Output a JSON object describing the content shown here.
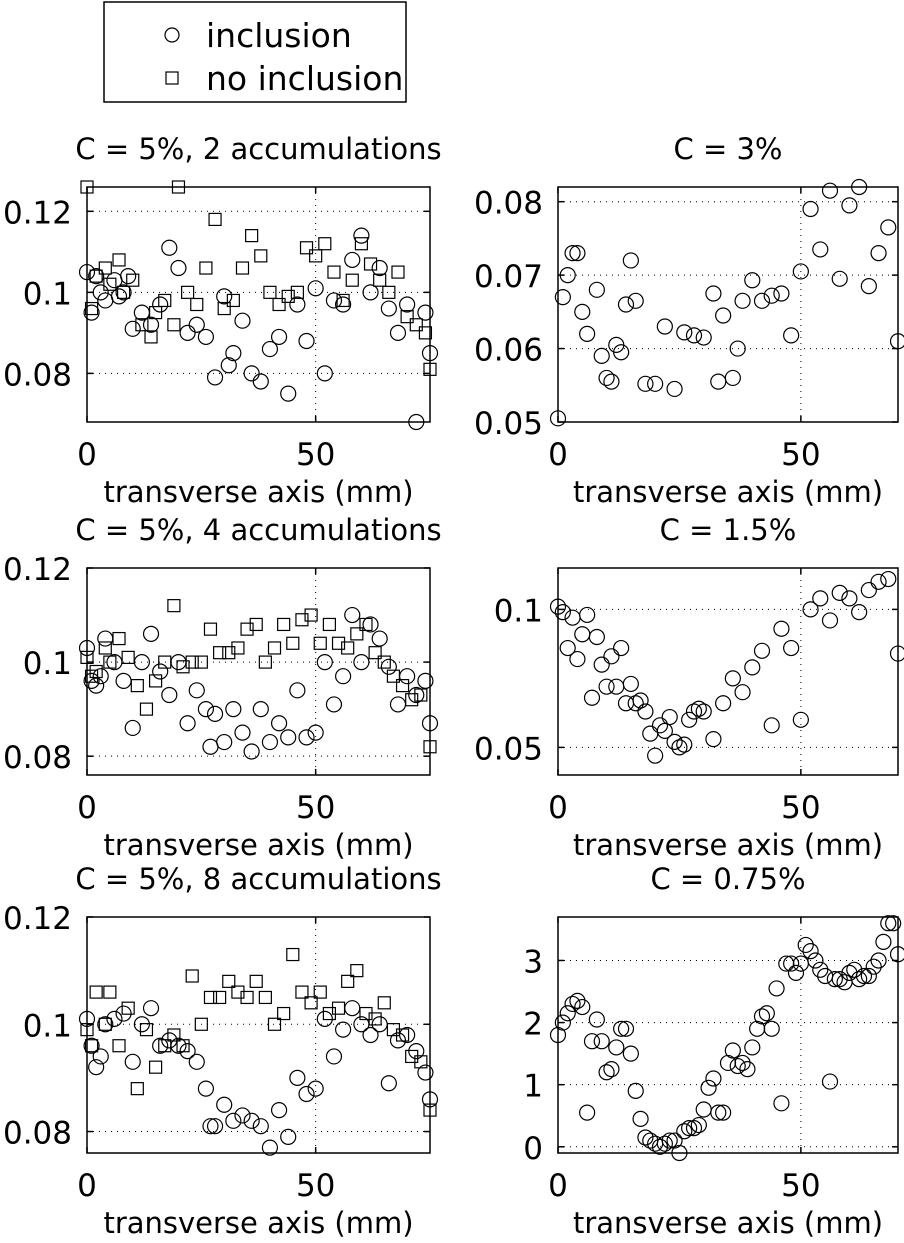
{
  "legend": {
    "entries": [
      {
        "label": "inclusion",
        "marker": "circle"
      },
      {
        "label": "no inclusion",
        "marker": "square"
      }
    ]
  },
  "chart_data": [
    {
      "type": "scatter",
      "title": "C = 5%, 2 accumulations",
      "xlabel": "transverse axis (mm)",
      "ylabel": "",
      "xlim": [
        0,
        75
      ],
      "ylim": [
        0.068,
        0.126
      ],
      "xticks": [
        0,
        50
      ],
      "yticks": [
        0.08,
        0.1,
        0.12
      ],
      "ytick_labels": [
        "0.08",
        "0.1",
        "0.12"
      ],
      "vgrid": [
        50
      ],
      "hgrid": [
        0.08,
        0.1,
        0.12
      ],
      "series": [
        {
          "name": "inclusion",
          "marker": "circle",
          "x": [
            0,
            1,
            2,
            3,
            4,
            6,
            7,
            8,
            9,
            10,
            12,
            14,
            16,
            18,
            20,
            22,
            24,
            26,
            28,
            30,
            31,
            32,
            34,
            36,
            38,
            40,
            42,
            44,
            46,
            48,
            50,
            52,
            54,
            56,
            58,
            60,
            62,
            64,
            66,
            68,
            70,
            72,
            74,
            75
          ],
          "y": [
            0.105,
            0.095,
            0.104,
            0.1,
            0.098,
            0.103,
            0.099,
            0.1,
            0.104,
            0.091,
            0.095,
            0.092,
            0.097,
            0.111,
            0.106,
            0.09,
            0.092,
            0.089,
            0.079,
            0.099,
            0.082,
            0.085,
            0.093,
            0.08,
            0.078,
            0.086,
            0.089,
            0.075,
            0.097,
            0.088,
            0.101,
            0.08,
            0.098,
            0.097,
            0.108,
            0.114,
            0.1,
            0.106,
            0.096,
            0.09,
            0.097,
            0.068,
            0.095,
            0.085
          ]
        },
        {
          "name": "no inclusion",
          "marker": "square",
          "x": [
            0,
            1,
            2,
            4,
            5,
            7,
            8,
            10,
            12,
            14,
            15,
            17,
            19,
            20,
            22,
            24,
            26,
            28,
            30,
            32,
            34,
            36,
            38,
            40,
            42,
            44,
            46,
            48,
            50,
            52,
            54,
            56,
            58,
            60,
            62,
            64,
            66,
            68,
            70,
            72,
            74,
            75
          ],
          "y": [
            0.126,
            0.096,
            0.104,
            0.106,
            0.102,
            0.108,
            0.1,
            0.103,
            0.092,
            0.089,
            0.095,
            0.098,
            0.092,
            0.126,
            0.1,
            0.097,
            0.106,
            0.118,
            0.096,
            0.098,
            0.106,
            0.114,
            0.109,
            0.1,
            0.097,
            0.099,
            0.1,
            0.111,
            0.109,
            0.112,
            0.105,
            0.098,
            0.103,
            0.112,
            0.107,
            0.103,
            0.1,
            0.105,
            0.094,
            0.092,
            0.09,
            0.081
          ]
        }
      ]
    },
    {
      "type": "scatter",
      "title": "C = 3%",
      "xlabel": "transverse axis (mm)",
      "ylabel": "",
      "xlim": [
        0,
        70
      ],
      "ylim": [
        0.05,
        0.082
      ],
      "xticks": [
        0,
        50
      ],
      "yticks": [
        0.05,
        0.06,
        0.07,
        0.08
      ],
      "ytick_labels": [
        "0.05",
        "0.06",
        "0.07",
        "0.08"
      ],
      "vgrid": [
        50
      ],
      "hgrid": [
        0.06,
        0.07,
        0.08
      ],
      "series": [
        {
          "name": "inclusion",
          "marker": "circle",
          "x": [
            0,
            1,
            2,
            3,
            4,
            5,
            6,
            8,
            9,
            10,
            11,
            12,
            13,
            14,
            15,
            16,
            18,
            20,
            22,
            24,
            26,
            28,
            30,
            32,
            33,
            34,
            36,
            37,
            38,
            40,
            42,
            44,
            46,
            48,
            50,
            52,
            54,
            56,
            58,
            60,
            62,
            64,
            66,
            68,
            70
          ],
          "y": [
            0.0505,
            0.067,
            0.07,
            0.073,
            0.073,
            0.065,
            0.062,
            0.068,
            0.059,
            0.056,
            0.0555,
            0.0605,
            0.0595,
            0.066,
            0.072,
            0.0665,
            0.0552,
            0.0552,
            0.063,
            0.0545,
            0.0622,
            0.0618,
            0.0615,
            0.0675,
            0.0555,
            0.0645,
            0.056,
            0.06,
            0.0665,
            0.0693,
            0.0665,
            0.0672,
            0.0675,
            0.0618,
            0.0705,
            0.079,
            0.0735,
            0.0815,
            0.0695,
            0.0795,
            0.082,
            0.0685,
            0.073,
            0.0765,
            0.061
          ]
        }
      ]
    },
    {
      "type": "scatter",
      "title": "C = 5%, 4 accumulations",
      "xlabel": "transverse axis (mm)",
      "ylabel": "",
      "xlim": [
        0,
        75
      ],
      "ylim": [
        0.076,
        0.12
      ],
      "xticks": [
        0,
        50
      ],
      "yticks": [
        0.08,
        0.1,
        0.12
      ],
      "ytick_labels": [
        "0.08",
        "0.1",
        "0.12"
      ],
      "vgrid": [
        50
      ],
      "hgrid": [
        0.08,
        0.1,
        0.12
      ],
      "series": [
        {
          "name": "inclusion",
          "marker": "circle",
          "x": [
            0,
            1,
            2,
            3,
            4,
            6,
            8,
            10,
            12,
            14,
            16,
            18,
            20,
            22,
            24,
            26,
            27,
            28,
            30,
            32,
            34,
            36,
            38,
            40,
            42,
            44,
            46,
            48,
            50,
            52,
            54,
            56,
            58,
            60,
            62,
            64,
            66,
            68,
            70,
            72,
            74,
            75
          ],
          "y": [
            0.103,
            0.096,
            0.095,
            0.097,
            0.105,
            0.1,
            0.096,
            0.086,
            0.1,
            0.106,
            0.098,
            0.093,
            0.1,
            0.087,
            0.094,
            0.09,
            0.082,
            0.089,
            0.083,
            0.09,
            0.085,
            0.081,
            0.09,
            0.083,
            0.087,
            0.084,
            0.094,
            0.084,
            0.085,
            0.1,
            0.091,
            0.097,
            0.11,
            0.1,
            0.108,
            0.105,
            0.099,
            0.091,
            0.097,
            0.093,
            0.096,
            0.087
          ]
        },
        {
          "name": "no inclusion",
          "marker": "square",
          "x": [
            0,
            1,
            2,
            4,
            5,
            7,
            9,
            11,
            13,
            15,
            17,
            19,
            21,
            23,
            25,
            27,
            29,
            31,
            33,
            35,
            37,
            39,
            41,
            43,
            45,
            47,
            49,
            51,
            53,
            55,
            57,
            59,
            61,
            63,
            65,
            67,
            69,
            71,
            73,
            75
          ],
          "y": [
            0.101,
            0.097,
            0.098,
            0.103,
            0.1,
            0.105,
            0.101,
            0.095,
            0.09,
            0.096,
            0.1,
            0.112,
            0.099,
            0.1,
            0.1,
            0.107,
            0.102,
            0.102,
            0.103,
            0.107,
            0.108,
            0.1,
            0.103,
            0.108,
            0.104,
            0.109,
            0.11,
            0.104,
            0.108,
            0.104,
            0.103,
            0.106,
            0.108,
            0.102,
            0.1,
            0.097,
            0.095,
            0.092,
            0.093,
            0.082
          ]
        }
      ]
    },
    {
      "type": "scatter",
      "title": "C = 1.5%",
      "xlabel": "transverse axis (mm)",
      "ylabel": "",
      "xlim": [
        0,
        70
      ],
      "ylim": [
        0.04,
        0.115
      ],
      "xticks": [
        0,
        50
      ],
      "yticks": [
        0.05,
        0.1
      ],
      "ytick_labels": [
        "0.05",
        "0.1"
      ],
      "vgrid": [
        50
      ],
      "hgrid": [
        0.05,
        0.1
      ],
      "series": [
        {
          "name": "inclusion",
          "marker": "circle",
          "x": [
            0,
            1,
            2,
            3,
            4,
            5,
            6,
            7,
            8,
            9,
            10,
            11,
            12,
            13,
            14,
            15,
            16,
            17,
            18,
            19,
            20,
            21,
            22,
            23,
            24,
            25,
            26,
            27,
            28,
            29,
            30,
            32,
            34,
            36,
            38,
            40,
            42,
            44,
            46,
            48,
            50,
            52,
            54,
            56,
            58,
            60,
            62,
            64,
            66,
            68,
            70
          ],
          "y": [
            0.101,
            0.099,
            0.086,
            0.097,
            0.082,
            0.091,
            0.098,
            0.068,
            0.09,
            0.08,
            0.072,
            0.083,
            0.072,
            0.086,
            0.066,
            0.073,
            0.066,
            0.067,
            0.063,
            0.055,
            0.047,
            0.058,
            0.056,
            0.061,
            0.052,
            0.05,
            0.051,
            0.06,
            0.063,
            0.064,
            0.063,
            0.053,
            0.066,
            0.075,
            0.07,
            0.079,
            0.085,
            0.058,
            0.093,
            0.086,
            0.06,
            0.1,
            0.104,
            0.096,
            0.106,
            0.104,
            0.099,
            0.107,
            0.11,
            0.111,
            0.084
          ]
        }
      ]
    },
    {
      "type": "scatter",
      "title": "C = 5%, 8 accumulations",
      "xlabel": "transverse axis (mm)",
      "ylabel": "",
      "xlim": [
        0,
        75
      ],
      "ylim": [
        0.076,
        0.12
      ],
      "xticks": [
        0,
        50
      ],
      "yticks": [
        0.08,
        0.1,
        0.12
      ],
      "ytick_labels": [
        "0.08",
        "0.1",
        "0.12"
      ],
      "vgrid": [
        50
      ],
      "hgrid": [
        0.08,
        0.1,
        0.12
      ],
      "series": [
        {
          "name": "inclusion",
          "marker": "circle",
          "x": [
            0,
            1,
            2,
            3,
            4,
            6,
            8,
            10,
            12,
            14,
            16,
            18,
            20,
            22,
            24,
            26,
            27,
            28,
            30,
            32,
            34,
            36,
            38,
            40,
            42,
            44,
            46,
            48,
            50,
            52,
            54,
            56,
            58,
            60,
            62,
            64,
            66,
            68,
            70,
            72,
            74,
            75
          ],
          "y": [
            0.101,
            0.096,
            0.092,
            0.094,
            0.1,
            0.101,
            0.102,
            0.093,
            0.1,
            0.103,
            0.096,
            0.097,
            0.096,
            0.095,
            0.093,
            0.088,
            0.081,
            0.081,
            0.085,
            0.082,
            0.083,
            0.082,
            0.081,
            0.077,
            0.084,
            0.079,
            0.09,
            0.087,
            0.088,
            0.101,
            0.094,
            0.099,
            0.103,
            0.1,
            0.098,
            0.1,
            0.089,
            0.097,
            0.098,
            0.095,
            0.091,
            0.086
          ]
        },
        {
          "name": "no inclusion",
          "marker": "square",
          "x": [
            0,
            1,
            2,
            4,
            5,
            7,
            9,
            11,
            13,
            15,
            17,
            19,
            21,
            23,
            25,
            27,
            29,
            31,
            33,
            35,
            37,
            39,
            41,
            43,
            45,
            47,
            49,
            51,
            53,
            55,
            57,
            59,
            61,
            63,
            65,
            67,
            69,
            71,
            73,
            75
          ],
          "y": [
            0.099,
            0.096,
            0.106,
            0.1,
            0.106,
            0.096,
            0.103,
            0.088,
            0.099,
            0.092,
            0.096,
            0.098,
            0.096,
            0.109,
            0.1,
            0.105,
            0.105,
            0.108,
            0.106,
            0.105,
            0.108,
            0.105,
            0.1,
            0.102,
            0.113,
            0.106,
            0.104,
            0.106,
            0.102,
            0.103,
            0.108,
            0.11,
            0.102,
            0.101,
            0.104,
            0.099,
            0.098,
            0.094,
            0.093,
            0.084
          ]
        }
      ]
    },
    {
      "type": "scatter",
      "title": "C = 0.75%",
      "xlabel": "transverse axis (mm)",
      "ylabel": "",
      "xlim": [
        0,
        70
      ],
      "ylim": [
        -0.1,
        3.7
      ],
      "xticks": [
        0,
        50
      ],
      "yticks": [
        0,
        1,
        2,
        3
      ],
      "ytick_labels": [
        "0",
        "1",
        "2",
        "3"
      ],
      "vgrid": [
        50
      ],
      "hgrid": [
        0,
        1,
        2,
        3
      ],
      "series": [
        {
          "name": "inclusion",
          "marker": "circle",
          "x": [
            0,
            1,
            2,
            3,
            4,
            5,
            6,
            7,
            8,
            9,
            10,
            11,
            12,
            13,
            14,
            15,
            16,
            17,
            18,
            19,
            20,
            21,
            22,
            23,
            24,
            25,
            26,
            27,
            28,
            29,
            30,
            31,
            32,
            33,
            34,
            35,
            36,
            37,
            38,
            39,
            40,
            41,
            42,
            43,
            44,
            45,
            46,
            47,
            48,
            49,
            50,
            51,
            52,
            53,
            54,
            55,
            56,
            57,
            58,
            59,
            60,
            61,
            62,
            63,
            64,
            65,
            66,
            67,
            68,
            69,
            70
          ],
          "y": [
            1.8,
            2,
            2.15,
            2.3,
            2.35,
            2.25,
            0.55,
            1.7,
            2.05,
            1.7,
            1.2,
            1.25,
            1.6,
            1.9,
            1.9,
            1.5,
            0.9,
            0.45,
            0.15,
            0.1,
            0.05,
            0,
            0.05,
            0.1,
            0.1,
            -0.1,
            0.25,
            0.3,
            0.3,
            0.35,
            0.6,
            0.95,
            1.1,
            0.55,
            0.55,
            1.35,
            1.55,
            1.3,
            1.35,
            1.25,
            1.6,
            1.9,
            2.1,
            2.15,
            1.9,
            2.55,
            0.7,
            2.95,
            2.95,
            2.8,
            2.95,
            3.25,
            3.15,
            3,
            2.85,
            2.75,
            1.05,
            2.7,
            2.7,
            2.65,
            2.8,
            2.85,
            2.7,
            2.75,
            2.75,
            2.9,
            3,
            3.3,
            3.6,
            3.6,
            3.1
          ]
        }
      ]
    }
  ]
}
